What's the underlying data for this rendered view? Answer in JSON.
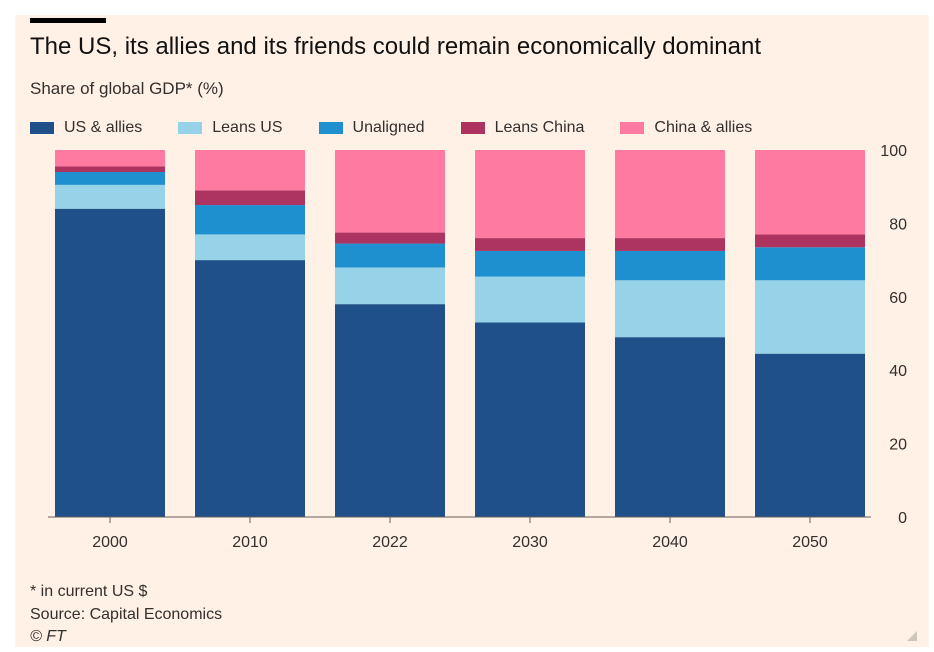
{
  "title": "The US, its allies and its friends could remain economically dominant",
  "subtitle": "Share of global GDP* (%)",
  "footnote": "* in current US $",
  "source": "Source: Capital Economics",
  "credit": "© FT",
  "colors": {
    "background": "#fff1e5",
    "us_allies": "#1f5089",
    "leans_us": "#96d3e8",
    "unaligned": "#1e8fcf",
    "leans_china": "#ad3460",
    "china_allies": "#ff7aa0"
  },
  "chart_data": {
    "type": "bar",
    "stacked": true,
    "categories": [
      "2000",
      "2010",
      "2022",
      "2030",
      "2040",
      "2050"
    ],
    "series": [
      {
        "name": "US & allies",
        "color": "#1f5089",
        "values": [
          84,
          70,
          58,
          53,
          49,
          44.5
        ]
      },
      {
        "name": "Leans US",
        "color": "#96d3e8",
        "values": [
          6.5,
          7,
          10,
          12.5,
          15.5,
          20
        ]
      },
      {
        "name": "Unaligned",
        "color": "#1e8fcf",
        "values": [
          3.5,
          8,
          6.5,
          7,
          8,
          9
        ]
      },
      {
        "name": "Leans China",
        "color": "#ad3460",
        "values": [
          1.5,
          4,
          3,
          3.5,
          3.5,
          3.5
        ]
      },
      {
        "name": "China & allies",
        "color": "#ff7aa0",
        "values": [
          4.5,
          11,
          22.5,
          24,
          24,
          23
        ]
      }
    ],
    "ylim": [
      0,
      100
    ],
    "yticks": [
      "0",
      "20",
      "40",
      "60",
      "80",
      "100"
    ],
    "y_axis_side": "right",
    "grid": false,
    "legend": "top"
  }
}
